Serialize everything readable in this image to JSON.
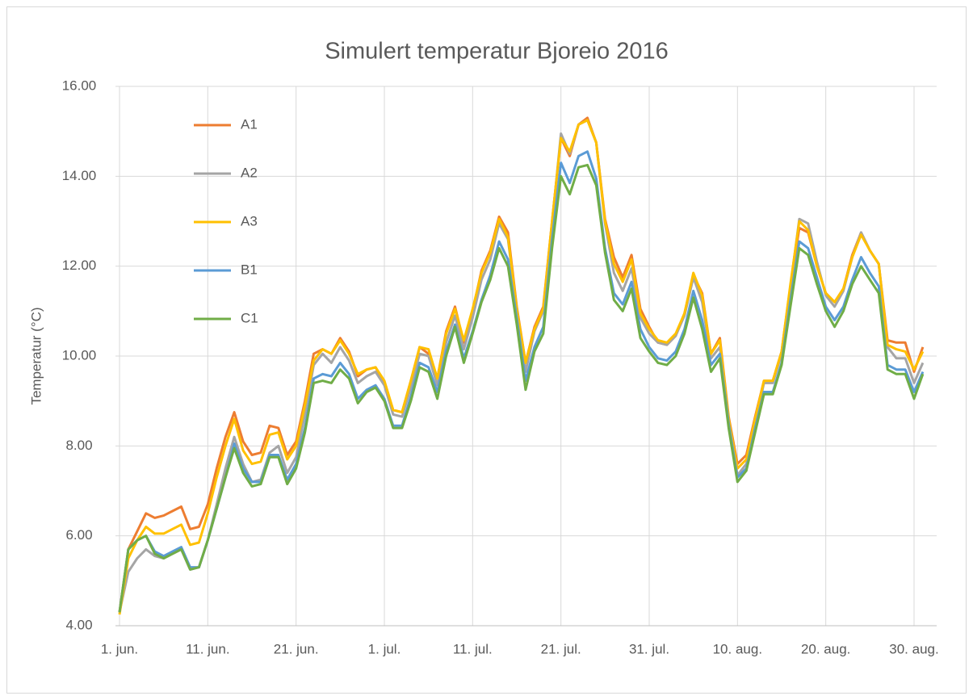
{
  "chart_data": {
    "type": "line",
    "title": "Simulert temperatur Bjoreio 2016",
    "y_label": "Temperatur (°C)",
    "categories": [
      "1. jun.",
      null,
      null,
      null,
      null,
      null,
      null,
      null,
      null,
      null,
      "11. jun.",
      null,
      null,
      null,
      null,
      null,
      null,
      null,
      null,
      null,
      "21. jun.",
      null,
      null,
      null,
      null,
      null,
      null,
      null,
      null,
      null,
      "1. jul.",
      null,
      null,
      null,
      null,
      null,
      null,
      null,
      null,
      null,
      "11. jul.",
      null,
      null,
      null,
      null,
      null,
      null,
      null,
      null,
      null,
      "21. jul.",
      null,
      null,
      null,
      null,
      null,
      null,
      null,
      null,
      null,
      "31. jul.",
      null,
      null,
      null,
      null,
      null,
      null,
      null,
      null,
      null,
      "10. aug.",
      null,
      null,
      null,
      null,
      null,
      null,
      null,
      null,
      null,
      "20. aug.",
      null,
      null,
      null,
      null,
      null,
      null,
      null,
      null,
      null,
      "30. aug.",
      null
    ],
    "series": [
      {
        "name": "A1",
        "color": "#ed7d31",
        "values": [
          4.3,
          5.7,
          6.1,
          6.5,
          6.4,
          6.45,
          6.55,
          6.65,
          6.15,
          6.2,
          6.7,
          7.5,
          8.2,
          8.75,
          8.1,
          7.8,
          7.85,
          8.45,
          8.4,
          7.8,
          8.1,
          9.0,
          10.05,
          10.15,
          10.05,
          10.4,
          10.1,
          9.55,
          9.7,
          9.75,
          9.4,
          8.8,
          8.75,
          9.45,
          10.2,
          10.05,
          9.5,
          10.55,
          11.1,
          10.3,
          11.0,
          11.9,
          12.35,
          13.1,
          12.75,
          11.1,
          9.85,
          10.65,
          11.1,
          13.0,
          14.85,
          14.45,
          15.15,
          15.3,
          14.75,
          13.05,
          12.2,
          11.75,
          12.25,
          11.05,
          10.65,
          10.3,
          10.25,
          10.45,
          10.95,
          11.8,
          11.4,
          10.05,
          10.4,
          8.65,
          7.6,
          7.8,
          8.65,
          9.45,
          9.45,
          10.1,
          11.55,
          12.85,
          12.75,
          12.0,
          11.4,
          11.2,
          11.5,
          12.25,
          12.75,
          12.35,
          12.05,
          10.35,
          10.3,
          10.3,
          9.65,
          10.2
        ]
      },
      {
        "name": "A2",
        "color": "#a5a5a5",
        "values": [
          4.3,
          5.2,
          5.5,
          5.7,
          5.55,
          5.5,
          5.6,
          5.7,
          5.25,
          5.3,
          5.9,
          6.7,
          7.5,
          8.2,
          7.6,
          7.2,
          7.25,
          7.85,
          8.0,
          7.4,
          7.75,
          8.7,
          9.8,
          10.05,
          9.85,
          10.2,
          9.9,
          9.4,
          9.55,
          9.65,
          9.35,
          8.7,
          8.65,
          9.3,
          10.05,
          10.0,
          9.35,
          10.3,
          10.9,
          10.15,
          10.85,
          11.7,
          12.15,
          12.95,
          12.6,
          11.05,
          9.65,
          10.55,
          11.0,
          12.95,
          14.95,
          14.5,
          15.15,
          15.25,
          14.75,
          12.95,
          11.85,
          11.45,
          11.95,
          10.85,
          10.5,
          10.3,
          10.25,
          10.45,
          10.9,
          11.75,
          11.2,
          9.95,
          10.2,
          8.5,
          7.35,
          7.6,
          8.5,
          9.4,
          9.4,
          10.05,
          11.55,
          13.05,
          12.95,
          12.1,
          11.35,
          11.1,
          11.45,
          12.2,
          12.75,
          12.35,
          12.05,
          10.2,
          9.95,
          9.95,
          9.4,
          9.85
        ]
      },
      {
        "name": "A3",
        "color": "#ffc000",
        "values": [
          4.25,
          5.5,
          5.9,
          6.2,
          6.05,
          6.05,
          6.15,
          6.25,
          5.8,
          5.85,
          6.5,
          7.3,
          8.0,
          8.6,
          7.9,
          7.6,
          7.65,
          8.25,
          8.3,
          7.7,
          8.0,
          8.9,
          9.9,
          10.15,
          10.05,
          10.35,
          10.05,
          9.6,
          9.7,
          9.75,
          9.45,
          8.8,
          8.75,
          9.45,
          10.2,
          10.15,
          9.5,
          10.5,
          11.05,
          10.35,
          11.05,
          11.85,
          12.3,
          13.05,
          12.65,
          11.05,
          9.85,
          10.6,
          11.05,
          13.0,
          14.85,
          14.55,
          15.15,
          15.25,
          14.75,
          13.0,
          12.05,
          11.65,
          12.15,
          10.95,
          10.6,
          10.35,
          10.3,
          10.5,
          10.95,
          11.85,
          11.35,
          10.05,
          10.35,
          8.6,
          7.5,
          7.7,
          8.6,
          9.45,
          9.45,
          10.1,
          11.6,
          13.0,
          12.8,
          12.0,
          11.4,
          11.2,
          11.5,
          12.2,
          12.7,
          12.35,
          12.05,
          10.25,
          10.15,
          10.1,
          9.7,
          10.1
        ]
      },
      {
        "name": "B1",
        "color": "#5b9bd5",
        "values": [
          4.3,
          5.7,
          5.9,
          6.0,
          5.65,
          5.55,
          5.65,
          5.75,
          5.3,
          5.3,
          5.9,
          6.6,
          7.3,
          8.05,
          7.5,
          7.2,
          7.2,
          7.8,
          7.8,
          7.25,
          7.6,
          8.4,
          9.5,
          9.6,
          9.55,
          9.85,
          9.6,
          9.05,
          9.25,
          9.35,
          9.05,
          8.45,
          8.45,
          9.1,
          9.85,
          9.75,
          9.2,
          10.1,
          10.7,
          9.95,
          10.55,
          11.25,
          11.8,
          12.55,
          12.15,
          10.85,
          9.45,
          10.2,
          10.65,
          12.6,
          14.3,
          13.85,
          14.45,
          14.55,
          13.95,
          12.4,
          11.4,
          11.15,
          11.65,
          10.6,
          10.2,
          9.95,
          9.9,
          10.1,
          10.6,
          11.45,
          10.8,
          9.8,
          10.05,
          8.5,
          7.3,
          7.5,
          8.4,
          9.2,
          9.2,
          9.85,
          11.25,
          12.55,
          12.4,
          11.75,
          11.1,
          10.8,
          11.1,
          11.7,
          12.2,
          11.85,
          11.55,
          9.8,
          9.7,
          9.7,
          9.2,
          9.65
        ]
      },
      {
        "name": "C1",
        "color": "#70ad47",
        "values": [
          4.3,
          5.7,
          5.9,
          6.0,
          5.6,
          5.5,
          5.6,
          5.7,
          5.25,
          5.3,
          5.9,
          6.6,
          7.3,
          7.95,
          7.4,
          7.1,
          7.15,
          7.75,
          7.75,
          7.15,
          7.5,
          8.3,
          9.4,
          9.45,
          9.4,
          9.7,
          9.5,
          8.95,
          9.2,
          9.3,
          9.0,
          8.4,
          8.4,
          9.0,
          9.75,
          9.65,
          9.05,
          10.0,
          10.65,
          9.85,
          10.5,
          11.2,
          11.7,
          12.4,
          12.0,
          10.7,
          9.25,
          10.1,
          10.5,
          12.4,
          14.0,
          13.6,
          14.2,
          14.25,
          13.8,
          12.3,
          11.25,
          11.0,
          11.5,
          10.4,
          10.1,
          9.85,
          9.8,
          10.0,
          10.5,
          11.3,
          10.6,
          9.65,
          9.95,
          8.4,
          7.2,
          7.45,
          8.3,
          9.15,
          9.15,
          9.8,
          11.1,
          12.4,
          12.25,
          11.6,
          11.0,
          10.65,
          11.0,
          11.6,
          12.0,
          11.7,
          11.4,
          9.7,
          9.6,
          9.6,
          9.05,
          9.6
        ]
      }
    ],
    "ylim": [
      4,
      16
    ],
    "yticks": [
      {
        "value": 4,
        "label": "4.00"
      },
      {
        "value": 6,
        "label": "6.00"
      },
      {
        "value": 8,
        "label": "8.00"
      },
      {
        "value": 10,
        "label": "10.00"
      },
      {
        "value": 12,
        "label": "12.00"
      },
      {
        "value": 14,
        "label": "14.00"
      },
      {
        "value": 16,
        "label": "16.00"
      }
    ],
    "grid": true,
    "legend": "upper left"
  }
}
